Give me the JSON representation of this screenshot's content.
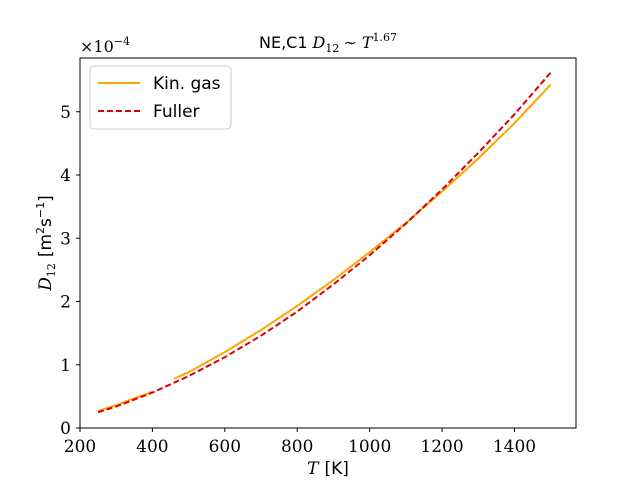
{
  "chart_data": {
    "type": "line",
    "title_prefix": "NE,C1",
    "title_math": "D",
    "title_math_sub": "12",
    "title_math_rel": "∼ T",
    "title_math_sup": "1.67",
    "xlabel_math": "T",
    "xlabel_unit": "[K]",
    "ylabel_math": "D",
    "ylabel_math_sub": "12",
    "ylabel_unit": "[m",
    "ylabel_unit_sup1": "2",
    "ylabel_unit_mid": "s",
    "ylabel_unit_sup2": "−1",
    "ylabel_unit_end": "]",
    "y_multiplier_base": "×10",
    "y_multiplier_exp": "−4",
    "xlim": [
      200,
      1570
    ],
    "ylim": [
      0,
      5.85
    ],
    "xticks": [
      200,
      400,
      600,
      800,
      1000,
      1200,
      1400
    ],
    "yticks": [
      0,
      1,
      2,
      3,
      4,
      5
    ],
    "grid": false,
    "legend_position": "top-left",
    "series": [
      {
        "name": "Kin. gas",
        "color": "#ffa500",
        "style": "solid",
        "segments": [
          {
            "x": [
              250,
              300,
              350,
              400
            ],
            "y": [
              0.27,
              0.36,
              0.47,
              0.57
            ]
          },
          {
            "x": [
              460,
              500,
              600,
              700,
              800,
              900,
              1000,
              1100,
              1200,
              1300,
              1400,
              1500
            ],
            "y": [
              0.78,
              0.88,
              1.2,
              1.55,
              1.93,
              2.34,
              2.78,
              3.24,
              3.74,
              4.26,
              4.82,
              5.43
            ]
          }
        ]
      },
      {
        "name": "Fuller",
        "color": "#dd0000",
        "style": "dashed",
        "segments": [
          {
            "x": [
              250,
              300,
              400,
              500,
              600,
              700,
              800,
              900,
              1000,
              1100,
              1200,
              1300,
              1400,
              1500
            ],
            "y": [
              0.25,
              0.34,
              0.56,
              0.82,
              1.12,
              1.46,
              1.84,
              2.27,
              2.73,
              3.23,
              3.77,
              4.35,
              4.96,
              5.62
            ]
          }
        ]
      }
    ]
  }
}
